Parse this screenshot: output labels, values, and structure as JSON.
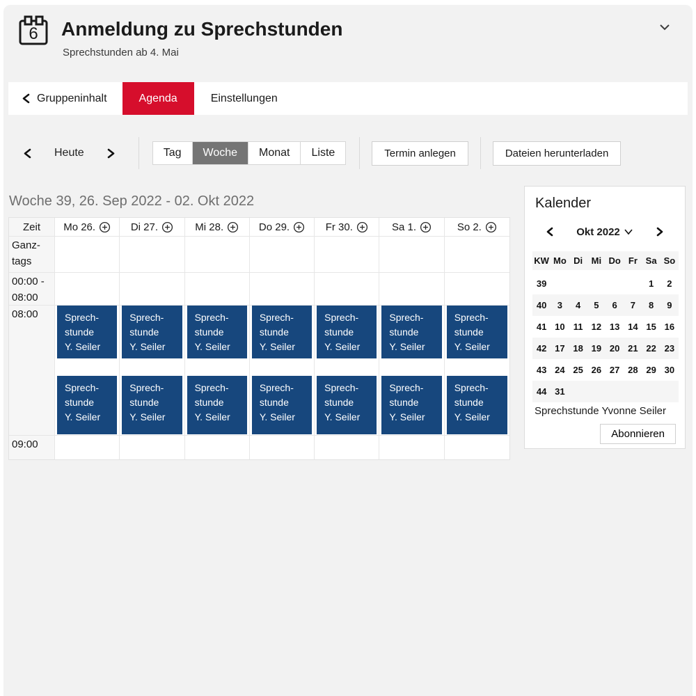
{
  "header": {
    "title": "Anmeldung zu Sprechstunden",
    "subtitle": "Sprechstunden ab 4. Mai"
  },
  "tabs": {
    "back": "Gruppeninhalt",
    "agenda": "Agenda",
    "settings": "Einstellungen"
  },
  "toolbar": {
    "today": "Heute",
    "views": [
      "Tag",
      "Woche",
      "Monat",
      "Liste"
    ],
    "selected_view": "Woche",
    "create": "Termin anlegen",
    "download": "Dateien herunterladen"
  },
  "agenda": {
    "week_title": "Woche 39, 26. Sep 2022 - 02. Okt 2022",
    "time_header": "Zeit",
    "day_headers": [
      "Mo 26.",
      "Di 27.",
      "Mi 28.",
      "Do 29.",
      "Fr 30.",
      "Sa 1.",
      "So 2."
    ],
    "all_day_lines": [
      "Ganz-",
      "tags"
    ],
    "early_lines": [
      "00:00 -",
      "08:00"
    ],
    "hour8_label": "08:00",
    "hour9_label": "09:00",
    "event_lines": [
      "Sprech-",
      "stunde",
      "Y. Seiler"
    ],
    "events_per_day": 2
  },
  "sidebar": {
    "title": "Kalender",
    "month": "Okt 2022",
    "weekday_headers": [
      "KW",
      "Mo",
      "Di",
      "Mi",
      "Do",
      "Fr",
      "Sa",
      "So"
    ],
    "weeks": [
      {
        "kw": "39",
        "days": [
          "",
          "",
          "",
          "",
          "",
          "1",
          "2"
        ]
      },
      {
        "kw": "40",
        "days": [
          "3",
          "4",
          "5",
          "6",
          "7",
          "8",
          "9"
        ]
      },
      {
        "kw": "41",
        "days": [
          "10",
          "11",
          "12",
          "13",
          "14",
          "15",
          "16"
        ]
      },
      {
        "kw": "42",
        "days": [
          "17",
          "18",
          "19",
          "20",
          "21",
          "22",
          "23"
        ]
      },
      {
        "kw": "43",
        "days": [
          "24",
          "25",
          "26",
          "27",
          "28",
          "29",
          "30"
        ]
      },
      {
        "kw": "44",
        "days": [
          "31",
          "",
          "",
          "",
          "",
          "",
          ""
        ]
      }
    ],
    "subscription": "Sprechstunde Yvonne Seiler",
    "subscribe": "Abonnieren"
  },
  "colors": {
    "accent_red": "#d60e2c",
    "event_blue": "#17477d",
    "selected_gray": "#757575",
    "page_bg": "#f2f2f2"
  }
}
